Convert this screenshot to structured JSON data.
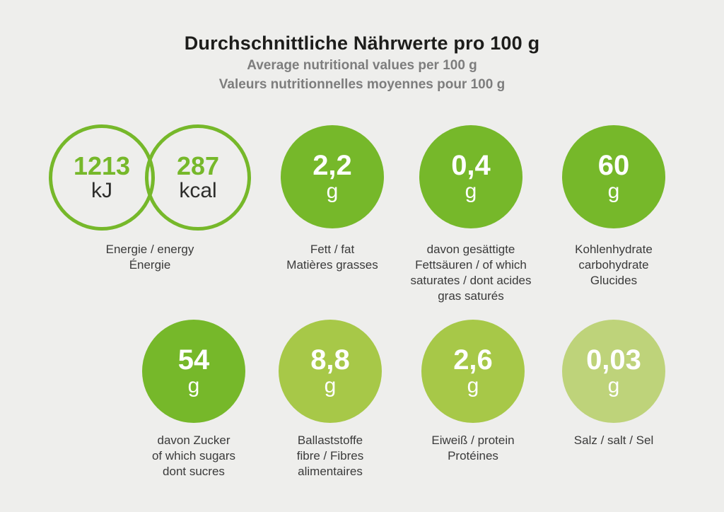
{
  "colors": {
    "background": "#eeeeec",
    "green_strong": "#76b82a",
    "green_mid": "#a7c848",
    "green_light": "#bed37a",
    "title_text": "#1d1d1b",
    "subtitle_text": "#7d7d7d",
    "label_text": "#3a3a3a",
    "value_on_circle": "#ffffff"
  },
  "header": {
    "title": "Durchschnittliche Nährwerte pro 100 g",
    "subtitle_en": "Average nutritional values per 100 g",
    "subtitle_fr": "Valeurs nutritionnelles moyennes pour 100 g"
  },
  "energy": {
    "kj_value": "1213",
    "kj_unit": "kJ",
    "kcal_value": "287",
    "kcal_unit": "kcal",
    "label_lines": [
      "Energie / energy",
      "Énergie"
    ]
  },
  "nutrients": [
    {
      "value": "2,2",
      "unit": "g",
      "color": "#76b82a",
      "label_lines": [
        "Fett / fat",
        "Matières grasses"
      ]
    },
    {
      "value": "0,4",
      "unit": "g",
      "color": "#76b82a",
      "label_lines": [
        "davon gesättigte",
        "Fettsäuren / of which",
        "saturates / dont acides",
        "gras saturés"
      ]
    },
    {
      "value": "60",
      "unit": "g",
      "color": "#76b82a",
      "label_lines": [
        "Kohlenhydrate",
        "carbohydrate",
        "Glucides"
      ]
    },
    {
      "value": "54",
      "unit": "g",
      "color": "#76b82a",
      "label_lines": [
        "davon Zucker",
        "of which sugars",
        "dont sucres"
      ]
    },
    {
      "value": "8,8",
      "unit": "g",
      "color": "#a7c848",
      "label_lines": [
        "Ballaststoffe",
        "fibre / Fibres",
        "alimentaires"
      ]
    },
    {
      "value": "2,6",
      "unit": "g",
      "color": "#a7c848",
      "label_lines": [
        "Eiweiß / protein",
        "Protéines"
      ]
    },
    {
      "value": "0,03",
      "unit": "g",
      "color": "#bed37a",
      "label_lines": [
        "Salz / salt / Sel"
      ]
    }
  ],
  "chart_data": {
    "type": "table",
    "title": "Durchschnittliche Nährwerte pro 100 g",
    "subtitles": [
      "Average nutritional values per 100 g",
      "Valeurs nutritionnelles moyennes pour 100 g"
    ],
    "unit_basis": "per 100 g",
    "rows": [
      {
        "nutrient": "Energie / energy / Énergie",
        "value": 1213,
        "unit": "kJ"
      },
      {
        "nutrient": "Energie / energy / Énergie",
        "value": 287,
        "unit": "kcal"
      },
      {
        "nutrient": "Fett / fat / Matières grasses",
        "value": 2.2,
        "unit": "g"
      },
      {
        "nutrient": "davon gesättigte Fettsäuren / of which saturates / dont acides gras saturés",
        "value": 0.4,
        "unit": "g"
      },
      {
        "nutrient": "Kohlenhydrate / carbohydrate / Glucides",
        "value": 60,
        "unit": "g"
      },
      {
        "nutrient": "davon Zucker / of which sugars / dont sucres",
        "value": 54,
        "unit": "g"
      },
      {
        "nutrient": "Ballaststoffe / fibre / Fibres alimentaires",
        "value": 8.8,
        "unit": "g"
      },
      {
        "nutrient": "Eiweiß / protein / Protéines",
        "value": 2.6,
        "unit": "g"
      },
      {
        "nutrient": "Salz / salt / Sel",
        "value": 0.03,
        "unit": "g"
      }
    ]
  }
}
